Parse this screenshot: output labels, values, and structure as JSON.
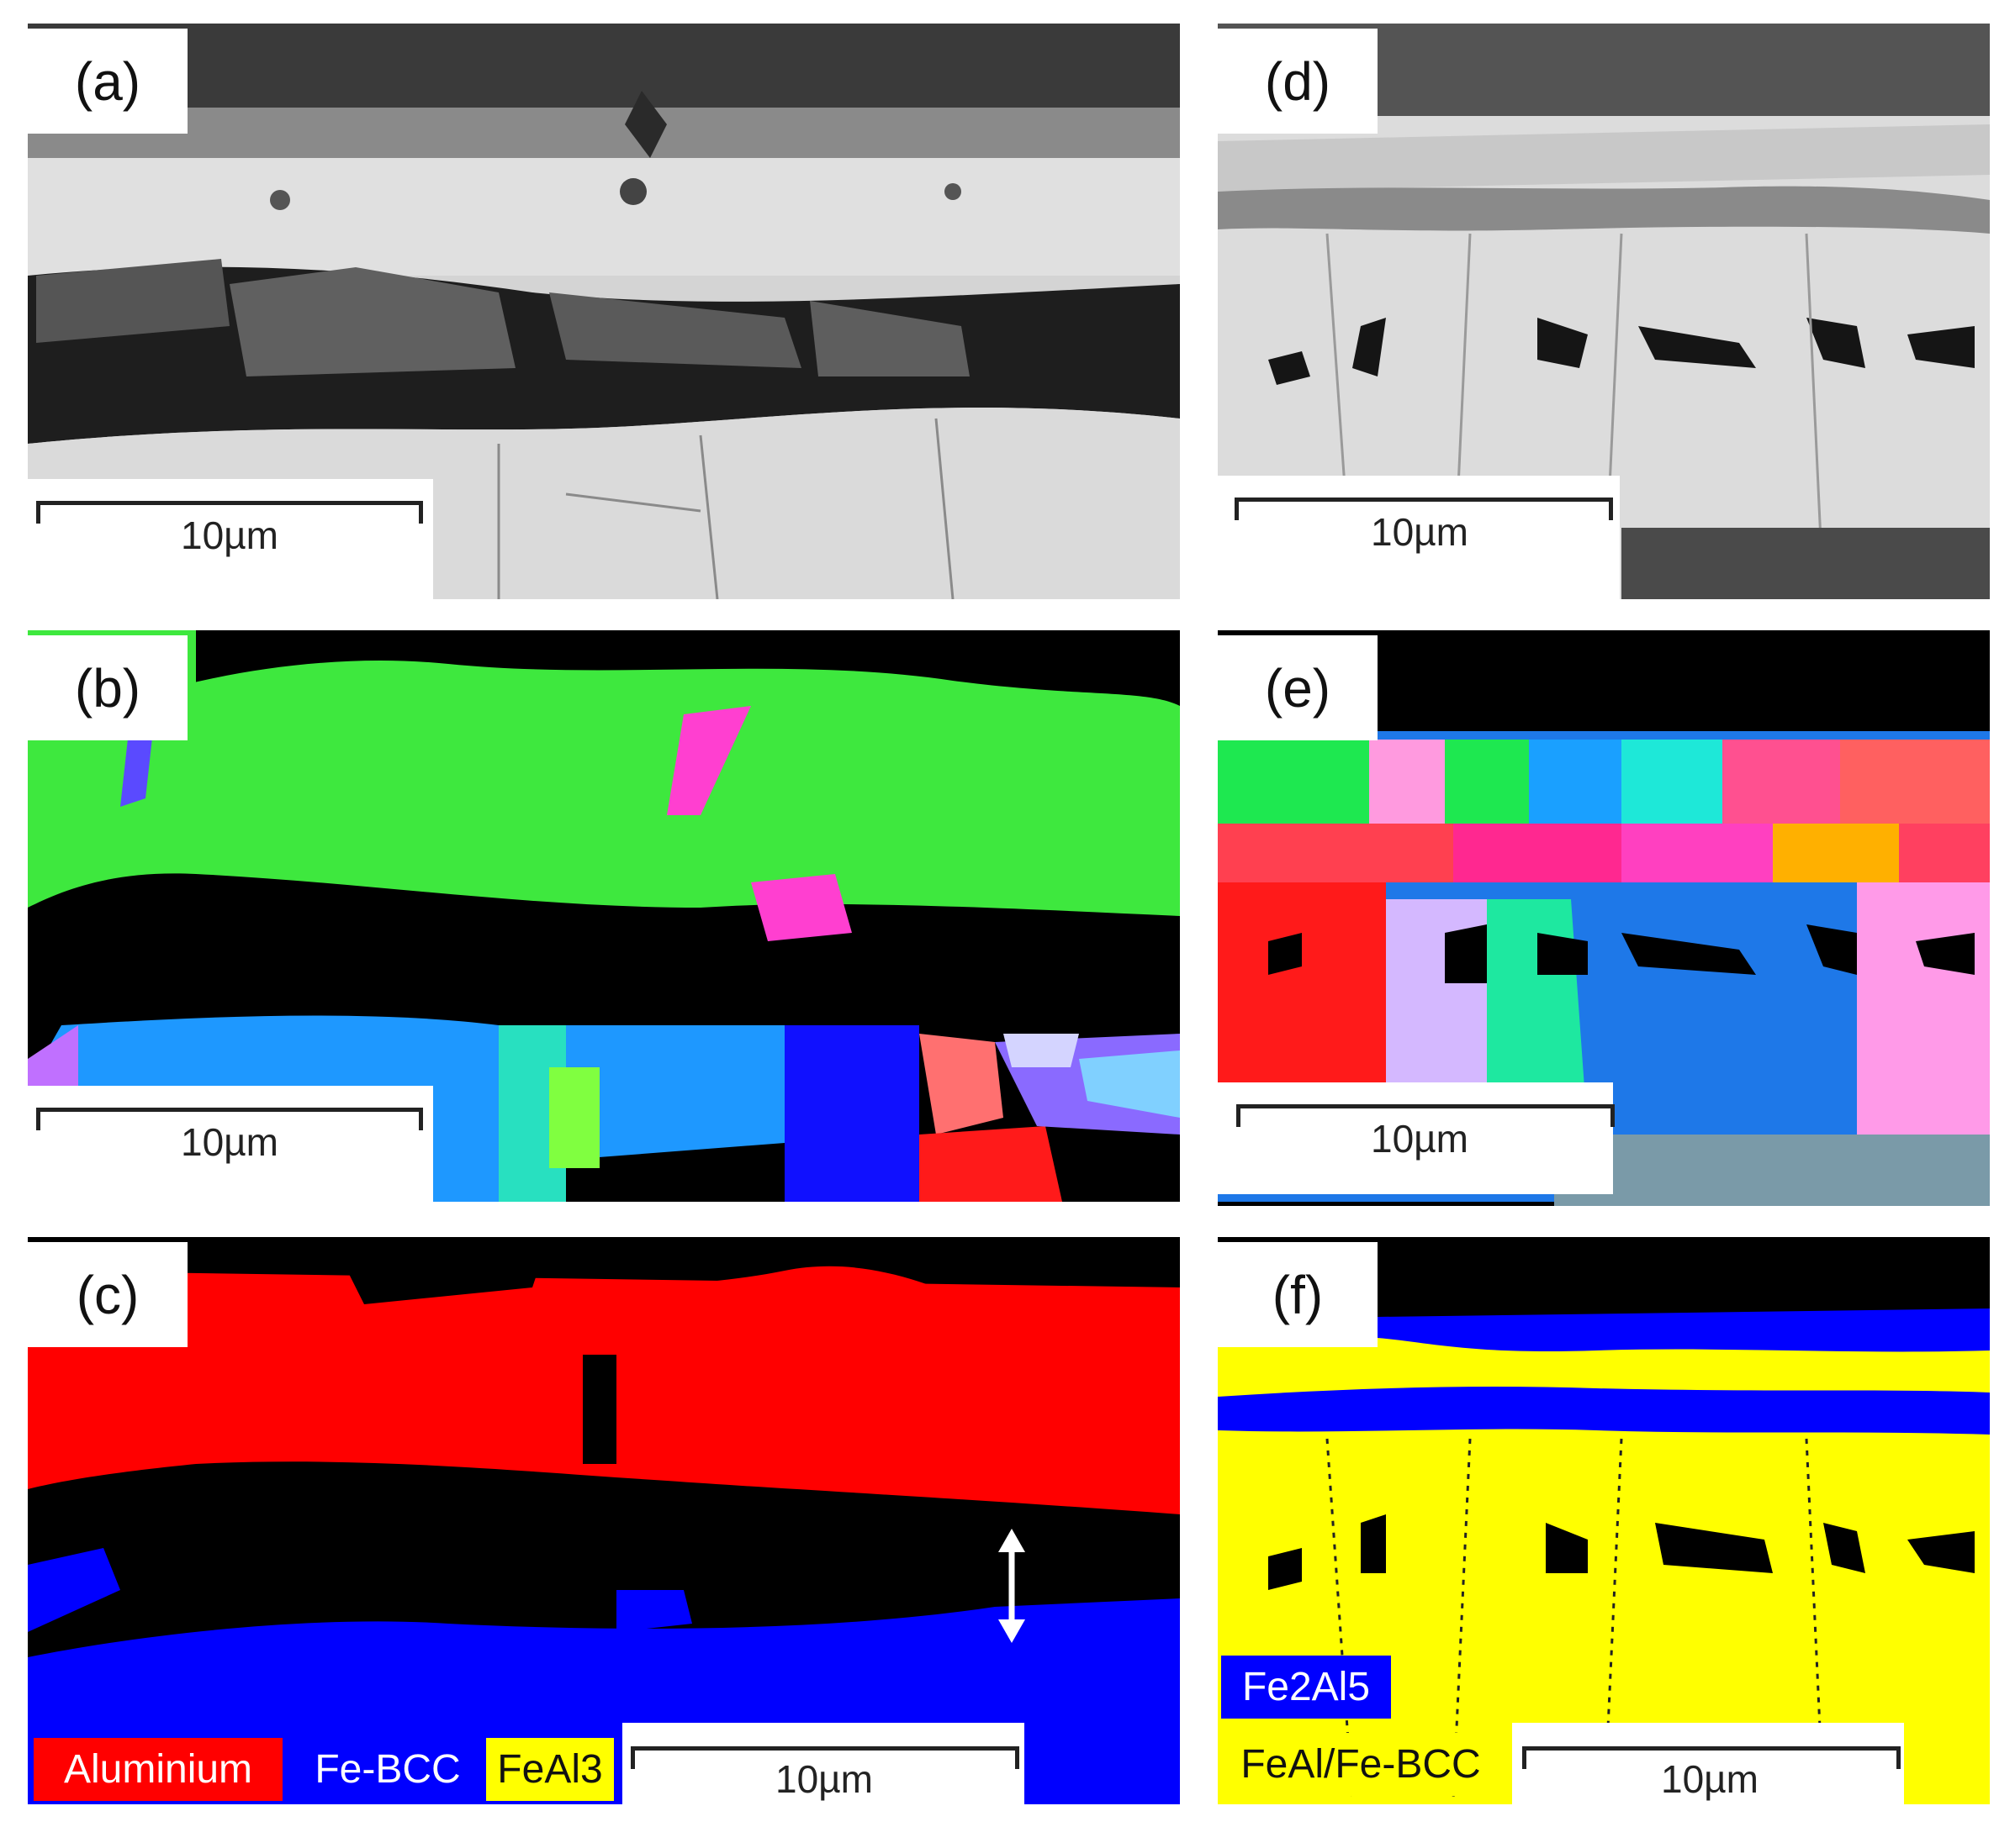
{
  "panels": [
    {
      "label": "(a)"
    },
    {
      "label": "(b)"
    },
    {
      "label": "(c)"
    },
    {
      "label": "(d)"
    },
    {
      "label": "(e)"
    },
    {
      "label": "(f)"
    }
  ],
  "scale_bar_text": "10µm",
  "legend_c": [
    "Aluminium",
    "Fe-BCC",
    "FeAl3"
  ],
  "legend_f": [
    "Fe2Al5",
    "FeAl/Fe-BCC"
  ],
  "colors": {
    "aluminium": "#ff0000",
    "fe_bcc": "#0000ff",
    "feal3": "#ffff00",
    "fe2al5": "#0000ff",
    "feal_fe_bcc": "#ffff00"
  }
}
